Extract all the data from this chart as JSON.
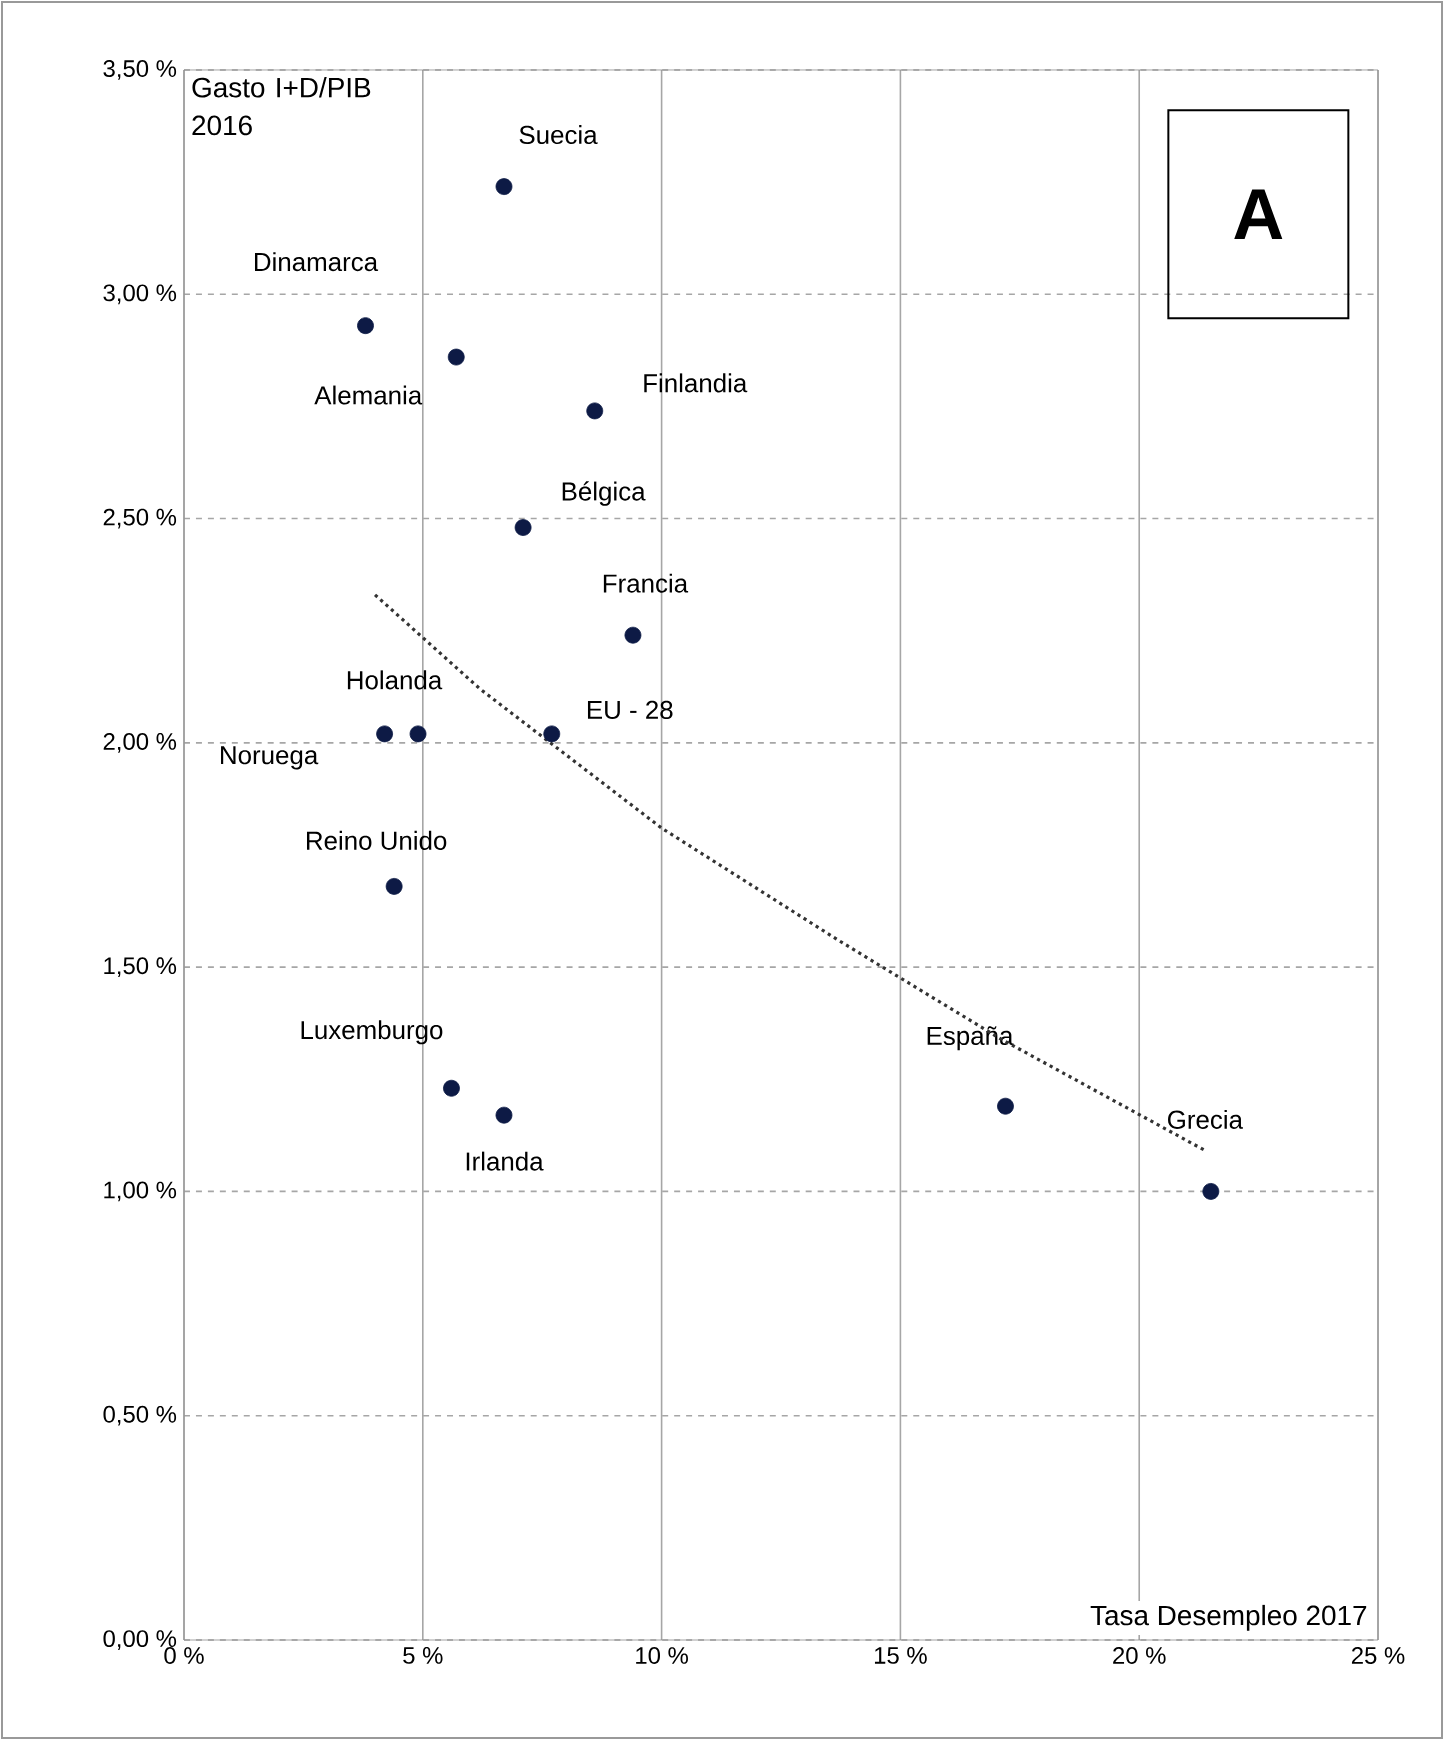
{
  "chart_data": {
    "type": "scatter",
    "xlabel": "Tasa Desempleo 2017",
    "ylabel": "Gasto I+D/PIB 2016",
    "annotations": [
      "A"
    ],
    "xlim": [
      0,
      25
    ],
    "ylim": [
      0,
      3.5
    ],
    "xticks": [
      {
        "value": 0,
        "label": "0 %"
      },
      {
        "value": 5,
        "label": "5 %"
      },
      {
        "value": 10,
        "label": "10 %"
      },
      {
        "value": 15,
        "label": "15 %"
      },
      {
        "value": 20,
        "label": "20 %"
      },
      {
        "value": 25,
        "label": "25 %"
      }
    ],
    "yticks": [
      {
        "value": 0,
        "label": "0,00 %"
      },
      {
        "value": 0.5,
        "label": "0,50 %"
      },
      {
        "value": 1,
        "label": "1,00 %"
      },
      {
        "value": 1.5,
        "label": "1,50 %"
      },
      {
        "value": 2,
        "label": "2,00 %"
      },
      {
        "value": 2.5,
        "label": "2,50 %"
      },
      {
        "value": 3,
        "label": "3,00 %"
      },
      {
        "value": 3.5,
        "label": "3,50 %"
      }
    ],
    "grid": true,
    "marker": "circle",
    "series": [
      {
        "name": "Suecia",
        "color": "#0d1a45",
        "x": [
          6.7
        ],
        "values": [
          3.24
        ]
      },
      {
        "name": "Dinamarca",
        "color": "#0d1a45",
        "x": [
          3.8
        ],
        "values": [
          2.93
        ]
      },
      {
        "name": "Alemania",
        "color": "#0d1a45",
        "x": [
          5.7
        ],
        "values": [
          2.86
        ]
      },
      {
        "name": "Finlandia",
        "color": "#0d1a45",
        "x": [
          8.6
        ],
        "values": [
          2.74
        ]
      },
      {
        "name": "Bélgica",
        "color": "#0d1a45",
        "x": [
          7.1
        ],
        "values": [
          2.48
        ]
      },
      {
        "name": "Francia",
        "color": "#0d1a45",
        "x": [
          9.4
        ],
        "values": [
          2.24
        ]
      },
      {
        "name": "Holanda",
        "color": "#0d1a45",
        "x": [
          4.9
        ],
        "values": [
          2.02
        ]
      },
      {
        "name": "Noruega",
        "color": "#0d1a45",
        "x": [
          4.2
        ],
        "values": [
          2.02
        ]
      },
      {
        "name": "EU - 28",
        "color": "#0d1a45",
        "x": [
          7.7
        ],
        "values": [
          2.02
        ]
      },
      {
        "name": "Reino Unido",
        "color": "#0d1a45",
        "x": [
          4.4
        ],
        "values": [
          1.68
        ]
      },
      {
        "name": "Luxemburgo",
        "color": "#0d1a45",
        "x": [
          5.6
        ],
        "values": [
          1.23
        ]
      },
      {
        "name": "Irlanda",
        "color": "#0d1a45",
        "x": [
          6.7
        ],
        "values": [
          1.17
        ]
      },
      {
        "name": "España",
        "color": "#0d1a45",
        "x": [
          17.2
        ],
        "values": [
          1.19
        ]
      },
      {
        "name": "Grecia",
        "color": "#0d1a45",
        "x": [
          21.5
        ],
        "values": [
          1.0
        ]
      },
      {
        "type": "line",
        "line_style": "dotted",
        "marker": "none",
        "color": "#333333",
        "x": [
          4.0,
          6.2,
          10.0,
          13.7,
          17.1,
          21.4
        ],
        "values": [
          2.33,
          2.12,
          1.81,
          1.56,
          1.34,
          1.09
        ]
      }
    ]
  }
}
